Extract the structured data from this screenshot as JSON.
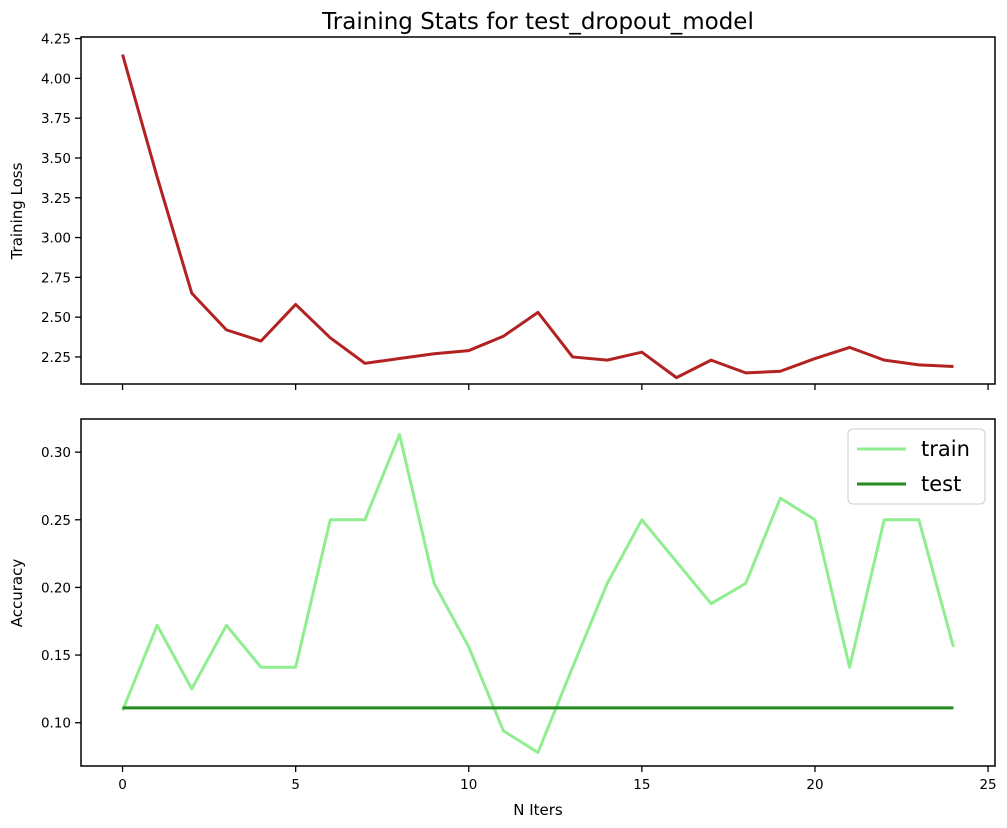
{
  "chart_data": [
    {
      "type": "line",
      "title": "Training Stats for test_dropout_model",
      "xlabel": "",
      "ylabel": "Training Loss",
      "xlim": [
        -1.2,
        25.2
      ],
      "ylim": [
        2.08,
        4.26
      ],
      "xticks": [
        0,
        5,
        10,
        15,
        20,
        25
      ],
      "show_xtick_labels": false,
      "yticks": [
        2.25,
        2.5,
        2.75,
        3.0,
        3.25,
        3.5,
        3.75,
        4.0,
        4.25
      ],
      "ytick_labels": [
        "2.25",
        "2.50",
        "2.75",
        "3.00",
        "3.25",
        "3.50",
        "3.75",
        "4.00",
        "4.25"
      ],
      "grid": false,
      "legend": null,
      "series": [
        {
          "color": "#b22222",
          "x": [
            0,
            1,
            2,
            3,
            4,
            5,
            6,
            7,
            8,
            9,
            10,
            11,
            12,
            13,
            14,
            15,
            16,
            17,
            18,
            19,
            20,
            21,
            22,
            23,
            24
          ],
          "y": [
            4.15,
            3.38,
            2.65,
            2.42,
            2.35,
            2.58,
            2.37,
            2.21,
            2.24,
            2.27,
            2.29,
            2.38,
            2.53,
            2.25,
            2.23,
            2.28,
            2.12,
            2.23,
            2.15,
            2.16,
            2.24,
            2.31,
            2.23,
            2.2,
            2.19
          ]
        }
      ]
    },
    {
      "type": "line",
      "title": "",
      "xlabel": "N Iters",
      "ylabel": "Accuracy",
      "xlim": [
        -1.2,
        25.2
      ],
      "ylim": [
        0.068,
        0.3245
      ],
      "xticks": [
        0,
        5,
        10,
        15,
        20,
        25
      ],
      "show_xtick_labels": true,
      "yticks": [
        0.1,
        0.15,
        0.2,
        0.25,
        0.3
      ],
      "ytick_labels": [
        "0.10",
        "0.15",
        "0.20",
        "0.25",
        "0.30"
      ],
      "grid": false,
      "legend": "top-right",
      "series": [
        {
          "name": "train",
          "color": "#90ee90",
          "x": [
            0,
            1,
            2,
            3,
            4,
            5,
            6,
            7,
            8,
            9,
            10,
            11,
            12,
            13,
            14,
            15,
            16,
            17,
            18,
            19,
            20,
            21,
            22,
            23,
            24
          ],
          "y": [
            0.109,
            0.172,
            0.125,
            0.172,
            0.141,
            0.141,
            0.25,
            0.25,
            0.313,
            0.203,
            0.156,
            0.094,
            0.078,
            0.141,
            0.203,
            0.25,
            0.219,
            0.188,
            0.203,
            0.266,
            0.25,
            0.141,
            0.25,
            0.25,
            0.156
          ]
        },
        {
          "name": "test",
          "color": "#228b22",
          "x": [
            0,
            24
          ],
          "y": [
            0.111,
            0.111
          ]
        }
      ]
    }
  ]
}
